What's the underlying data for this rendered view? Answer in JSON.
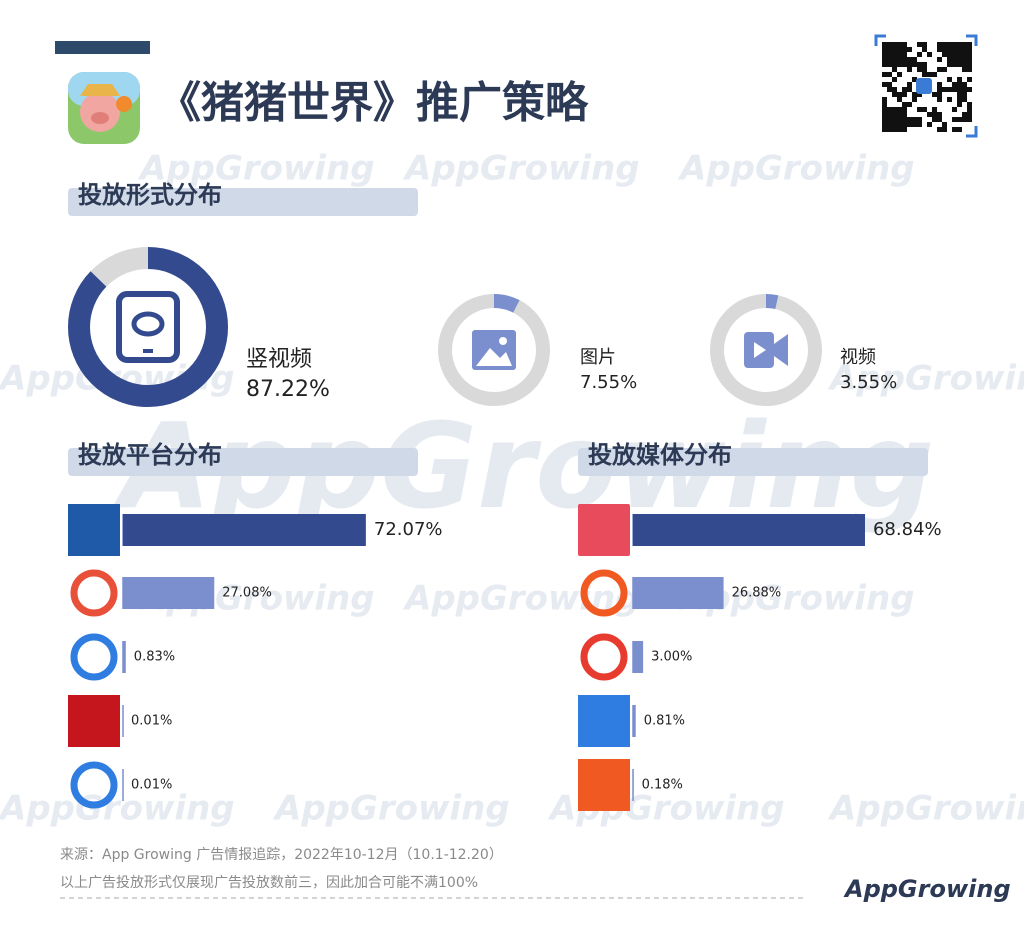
{
  "title": "《猪猪世界》推广策略",
  "brand": "AppGrowing",
  "chart_data": [
    {
      "type": "donut",
      "title": "投放形式分布",
      "categories": [
        "竖视频",
        "图片",
        "视频"
      ],
      "values": [
        87.22,
        7.55,
        3.55
      ],
      "value_labels": [
        "87.22%",
        "7.55%",
        "3.55%"
      ],
      "colors": [
        "#334a8e",
        "#7b8fcf",
        "#7b8fcf"
      ],
      "track_color": "#d9d9d9"
    },
    {
      "type": "hbar",
      "title": "投放平台分布",
      "categories": [
        null,
        null,
        null,
        null,
        null
      ],
      "values": [
        72.07,
        27.08,
        0.83,
        0.01,
        0.01
      ],
      "value_labels": [
        "72.07%",
        "27.08%",
        "0.83%",
        "0.01%",
        "0.01%"
      ],
      "colors": [
        "#334a8e",
        "#7b8fcf",
        "#7b8fcf",
        "#7b8fcf",
        "#7b8fcf"
      ]
    },
    {
      "type": "hbar",
      "title": "投放媒体分布",
      "categories": [
        null,
        null,
        null,
        null,
        null
      ],
      "values": [
        68.84,
        26.88,
        3.0,
        0.81,
        0.18
      ],
      "value_labels": [
        "68.84%",
        "26.88%",
        "3.00%",
        "0.81%",
        "0.18%"
      ],
      "colors": [
        "#334a8e",
        "#7b8fcf",
        "#7b8fcf",
        "#7b8fcf",
        "#7b8fcf"
      ]
    }
  ],
  "footer": {
    "source": "来源：App Growing 广告情报追踪，2022年10-12月（10.1-12.20）",
    "note": "以上广告投放形式仅展现广告投放数前三，因此加合可能不满100%"
  }
}
